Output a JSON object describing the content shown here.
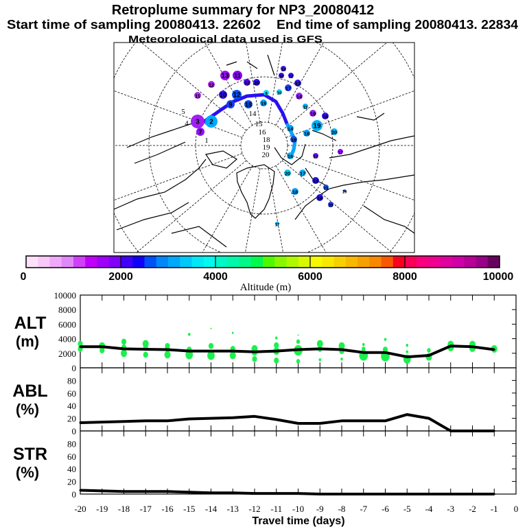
{
  "header": {
    "title": "Retroplume summary for NP3_20080412",
    "start_label": "Start time of sampling 20080413. 22602",
    "end_label": "End time of sampling 20080413. 22834",
    "met_label": "Meteorological data used is GFS"
  },
  "map": {
    "trajectory_color": "#2a10f0",
    "points": [
      {
        "label": "13",
        "color": "#9a10f0"
      },
      {
        "label": "11",
        "color": "#8a00f8"
      },
      {
        "label": "12",
        "color": "#a820f0"
      },
      {
        "label": "11",
        "color": "#a830f0"
      },
      {
        "label": "12",
        "color": "#5000f0"
      },
      {
        "label": "20",
        "color": "#2a10f0"
      },
      {
        "label": "10",
        "color": "#3010f0"
      },
      {
        "label": "12",
        "color": "#0050f8"
      },
      {
        "label": "9",
        "color": "#1040f0"
      },
      {
        "label": "18",
        "color": "#0050f8"
      },
      {
        "label": "9",
        "color": "#00e0f8"
      },
      {
        "label": "15",
        "color": "#00a0f8"
      },
      {
        "label": "10",
        "color": "#00d8f8"
      },
      {
        "label": "14",
        "color": "#3a10f0"
      },
      {
        "label": "10",
        "color": "#3010f0"
      },
      {
        "label": "12",
        "color": "#3010f0"
      },
      {
        "label": "17",
        "color": "#2040f0"
      },
      {
        "label": "13",
        "color": "#3010f0"
      },
      {
        "label": "14",
        "color": "#9020f0"
      },
      {
        "label": "11",
        "color": "#00b0f8"
      },
      {
        "label": "19",
        "color": "#9020f0"
      },
      {
        "label": "16",
        "color": "#3010f0"
      },
      {
        "label": "19",
        "color": "#00b0f8"
      },
      {
        "label": "18",
        "color": "#00a0f8"
      },
      {
        "label": "20",
        "color": "#00b0f8"
      },
      {
        "label": "14",
        "color": "#00a0f8"
      },
      {
        "label": "18",
        "color": "#1050f0"
      },
      {
        "label": "17",
        "color": "#8a10f0"
      },
      {
        "label": "13",
        "color": "#6010f0"
      },
      {
        "label": "16",
        "color": "#00b0f8"
      },
      {
        "label": "20",
        "color": "#00c8f8"
      },
      {
        "label": "17",
        "color": "#00b0f8"
      },
      {
        "label": "14",
        "color": "#2010f0"
      },
      {
        "label": "18",
        "color": "#00a0f8"
      },
      {
        "label": "13",
        "color": "#1050f0"
      },
      {
        "label": "16",
        "color": "#2010f0"
      },
      {
        "label": "20",
        "color": "#2030f0"
      },
      {
        "label": "19",
        "color": "#0060f8"
      },
      {
        "label": "17",
        "color": "#00b0f8"
      },
      {
        "label": "2",
        "color": "#00a8f8"
      },
      {
        "label": "3",
        "color": "#a020f0"
      },
      {
        "label": "7",
        "color": "#9010f0"
      }
    ],
    "day_labels": [
      "5",
      "4",
      "1",
      "14",
      "15",
      "16",
      "18",
      "19",
      "20"
    ]
  },
  "colorbar": {
    "label": "Altitude (m)",
    "ticks": [
      "0",
      "2000",
      "4000",
      "6000",
      "8000",
      "10000"
    ],
    "colors": [
      "#fde0f8",
      "#f8c8f8",
      "#f0a8f8",
      "#e088f8",
      "#d040f8",
      "#c000f8",
      "#a000f8",
      "#8000f8",
      "#4000f8",
      "#1000f8",
      "#0050f8",
      "#0088f8",
      "#00a8f8",
      "#00c8f8",
      "#00e8f8",
      "#00f8f0",
      "#00f8c8",
      "#00f8a8",
      "#00f888",
      "#00f850",
      "#50f800",
      "#88f800",
      "#b0f800",
      "#d8f800",
      "#f8f800",
      "#f8e800",
      "#f8d000",
      "#f8b800",
      "#f8a000",
      "#f88800",
      "#f85800",
      "#f80020",
      "#f80058",
      "#f80080",
      "#f00090",
      "#e000a0",
      "#d000a8",
      "#b80098",
      "#980088",
      "#680060"
    ]
  },
  "chart_data": [
    {
      "type": "line",
      "name": "ALT",
      "ylabel": "ALT",
      "yunit": "(m)",
      "ylim": [
        0,
        10000
      ],
      "yticks": [
        "0",
        "2000",
        "4000",
        "6000",
        "8000",
        "10000"
      ],
      "x": [
        -20,
        -19,
        -18,
        -17,
        -16,
        -15,
        -14,
        -13,
        -12,
        -11,
        -10,
        -9,
        -8,
        -7,
        -6,
        -5,
        -4,
        -3,
        -2,
        -1
      ],
      "values": [
        2900,
        2900,
        2600,
        2550,
        2500,
        2300,
        2300,
        2300,
        2200,
        2300,
        2500,
        2600,
        2500,
        2100,
        2100,
        1500,
        1700,
        3000,
        2900,
        2500
      ],
      "scatter_color": "#1cf04c",
      "scatter": [
        [
          -20,
          3300,
          4
        ],
        [
          -20,
          2600,
          4
        ],
        [
          -19,
          3000,
          5
        ],
        [
          -19,
          2400,
          4
        ],
        [
          -18,
          3600,
          4
        ],
        [
          -18,
          2800,
          4
        ],
        [
          -18,
          2000,
          5
        ],
        [
          -17,
          3300,
          5
        ],
        [
          -17,
          2800,
          4
        ],
        [
          -17,
          1800,
          4
        ],
        [
          -16,
          3000,
          4
        ],
        [
          -16,
          2600,
          4
        ],
        [
          -16,
          1800,
          5
        ],
        [
          -15,
          4600,
          2
        ],
        [
          -15,
          2500,
          4
        ],
        [
          -15,
          1800,
          6
        ],
        [
          -14,
          5400,
          1
        ],
        [
          -14,
          3000,
          4
        ],
        [
          -14,
          1700,
          6
        ],
        [
          -13,
          4800,
          1.5
        ],
        [
          -13,
          2600,
          4
        ],
        [
          -13,
          1700,
          5
        ],
        [
          -12,
          2600,
          5
        ],
        [
          -12,
          2200,
          5
        ],
        [
          -12,
          1200,
          4
        ],
        [
          -11,
          4100,
          2
        ],
        [
          -11,
          3100,
          4
        ],
        [
          -11,
          2300,
          5
        ],
        [
          -11,
          1000,
          4
        ],
        [
          -10,
          4500,
          1
        ],
        [
          -10,
          3600,
          3
        ],
        [
          -10,
          2400,
          7
        ],
        [
          -10,
          900,
          3
        ],
        [
          -9,
          3300,
          5
        ],
        [
          -9,
          2600,
          4
        ],
        [
          -9,
          1100,
          2
        ],
        [
          -8,
          3000,
          5
        ],
        [
          -8,
          2300,
          4
        ],
        [
          -8,
          1200,
          2
        ],
        [
          -7,
          3200,
          2
        ],
        [
          -7,
          2600,
          3
        ],
        [
          -7,
          1700,
          7
        ],
        [
          -6,
          3900,
          2
        ],
        [
          -6,
          2500,
          4
        ],
        [
          -6,
          1600,
          7
        ],
        [
          -5,
          3100,
          2
        ],
        [
          -5,
          2200,
          2
        ],
        [
          -5,
          1200,
          6
        ],
        [
          -4,
          2400,
          3
        ],
        [
          -4,
          1500,
          5
        ],
        [
          -3,
          3200,
          5
        ],
        [
          -3,
          2800,
          5
        ],
        [
          -2,
          3200,
          5
        ],
        [
          -2,
          2700,
          5
        ],
        [
          -1,
          2600,
          5
        ]
      ]
    },
    {
      "type": "line",
      "name": "ABL",
      "ylabel": "ABL",
      "yunit": "(%)",
      "ylim": [
        0,
        100
      ],
      "yticks": [
        "0",
        "20",
        "40",
        "60",
        "80"
      ],
      "x": [
        -20,
        -19,
        -18,
        -17,
        -16,
        -15,
        -14,
        -13,
        -12,
        -11,
        -10,
        -9,
        -8,
        -7,
        -6,
        -5,
        -4,
        -3,
        -2,
        -1
      ],
      "values": [
        13,
        14,
        15,
        16,
        16,
        19,
        20,
        21,
        23,
        18,
        12,
        12,
        16,
        16,
        16,
        26,
        20,
        0,
        0,
        0
      ]
    },
    {
      "type": "line",
      "name": "STR",
      "ylabel": "STR",
      "yunit": "(%)",
      "ylim": [
        0,
        100
      ],
      "yticks": [
        "0",
        "20",
        "40",
        "60",
        "80"
      ],
      "x": [
        -20,
        -19,
        -18,
        -17,
        -16,
        -15,
        -14,
        -13,
        -12,
        -11,
        -10,
        -9,
        -8,
        -7,
        -6,
        -5,
        -4,
        -3,
        -2,
        -1
      ],
      "values": [
        6,
        5,
        4,
        4,
        4,
        3,
        2,
        2,
        1,
        1,
        1,
        0,
        0,
        0,
        0,
        0,
        0,
        0,
        0,
        0
      ]
    }
  ],
  "xaxis": {
    "label": "Travel time (days)",
    "ticks": [
      "-20",
      "-19",
      "-18",
      "-17",
      "-16",
      "-15",
      "-14",
      "-13",
      "-12",
      "-11",
      "-10",
      "-9",
      "-8",
      "-7",
      "-6",
      "-5",
      "-4",
      "-3",
      "-2",
      "-1",
      "0"
    ],
    "xlim": [
      -20,
      0
    ]
  }
}
